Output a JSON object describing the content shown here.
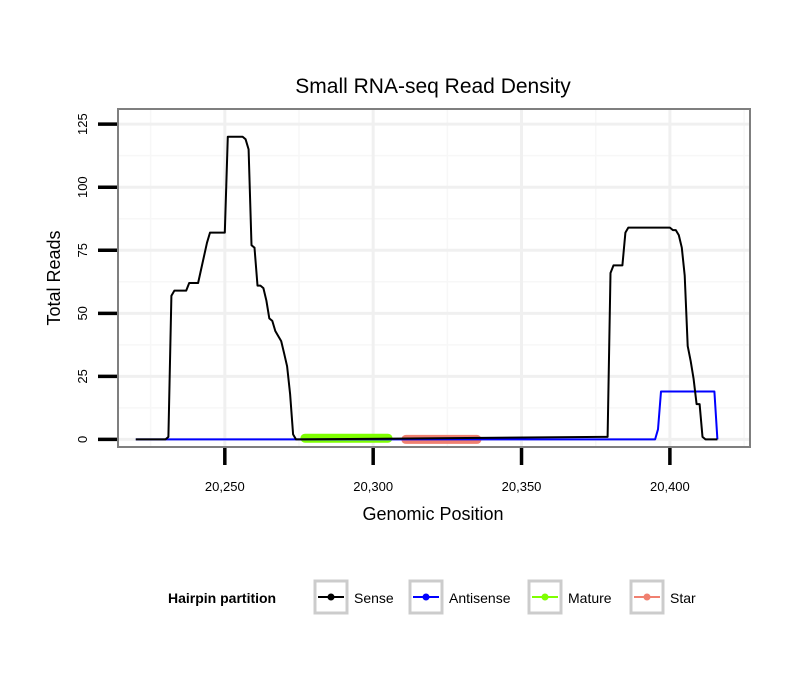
{
  "chart_data": {
    "type": "line",
    "title": "Small RNA-seq Read Density",
    "xlabel": "Genomic Position",
    "ylabel": "Total Reads",
    "xlim": [
      20214,
      20427
    ],
    "ylim": [
      -3,
      131
    ],
    "x_ticks": [
      20250,
      20300,
      20350,
      20400
    ],
    "x_tick_labels": [
      "20,250",
      "20,300",
      "20,350",
      "20,400"
    ],
    "y_ticks": [
      0,
      25,
      50,
      75,
      100,
      125
    ],
    "y_tick_labels": [
      "0",
      "25",
      "50",
      "75",
      "100",
      "125"
    ],
    "grid": true,
    "legend": {
      "title": "Hairpin partition",
      "position": "bottom"
    },
    "series": [
      {
        "name": "Sense",
        "color": "#000000",
        "x": [
          20220,
          20230,
          20231,
          20232,
          20233,
          20235,
          20237,
          20238,
          20240,
          20241,
          20244,
          20245,
          20246,
          20250,
          20251,
          20256,
          20257,
          20258,
          20259,
          20260,
          20261,
          20262,
          20263,
          20264,
          20265,
          20266,
          20267,
          20268,
          20269,
          20270,
          20271,
          20272,
          20273,
          20274,
          20275,
          20377,
          20378,
          20379,
          20380,
          20381,
          20384,
          20385,
          20386,
          20387,
          20388,
          20389,
          20390,
          20391,
          20392,
          20393,
          20394,
          20395,
          20396,
          20397,
          20398,
          20399,
          20400,
          20401,
          20402,
          20403,
          20404,
          20405,
          20406,
          20407,
          20408,
          20409,
          20410,
          20411,
          20412,
          20414,
          20416
        ],
        "y": [
          0,
          0,
          1,
          57,
          59,
          59,
          59,
          62,
          62,
          62,
          78,
          82,
          82,
          82,
          120,
          120,
          119,
          115,
          77,
          76,
          61,
          61,
          60,
          55,
          48,
          47,
          43,
          41,
          39,
          34,
          29,
          18,
          2,
          0,
          0,
          1,
          1,
          1,
          66,
          69,
          69,
          82,
          84,
          84,
          84,
          84,
          84,
          84,
          84,
          84,
          84,
          84,
          84,
          84,
          84,
          84,
          84,
          83,
          83,
          81,
          76,
          65,
          37,
          31,
          24,
          14,
          14,
          1,
          0,
          0,
          0
        ]
      },
      {
        "name": "Antisense",
        "color": "#0000FF",
        "x": [
          20220,
          20395,
          20396,
          20397,
          20415,
          20416
        ],
        "y": [
          0,
          0,
          4,
          19,
          19,
          0
        ]
      },
      {
        "name": "Mature",
        "color": "#7FFF00",
        "x": [
          20277,
          20305
        ],
        "y": [
          0.5,
          0.5
        ]
      },
      {
        "name": "Star",
        "color": "#F08070",
        "x": [
          20311,
          20335
        ],
        "y": [
          0,
          0
        ]
      }
    ]
  }
}
